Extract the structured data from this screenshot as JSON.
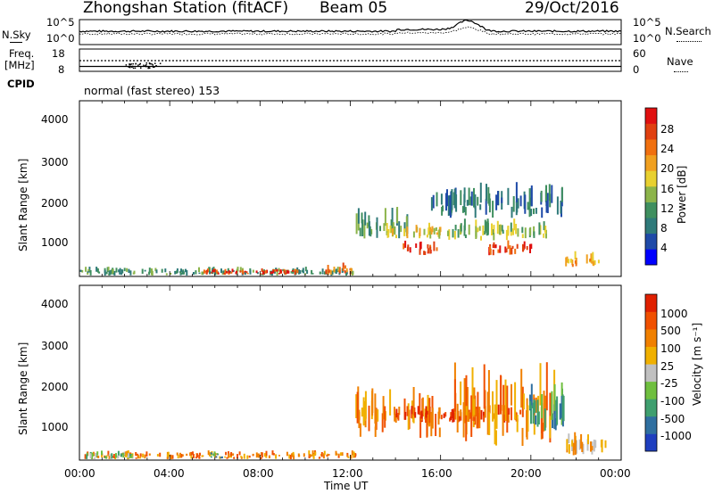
{
  "header": {
    "title": "Zhongshan Station (fitACF)",
    "beam": "Beam 05",
    "date": "29/Oct/2016"
  },
  "strip_noise": {
    "left_label": "N.Sky",
    "right_label": "N.Search",
    "left_ticks": [
      "10^5",
      "10^0"
    ],
    "right_ticks": [
      "10^5",
      "10^0"
    ]
  },
  "strip_freq": {
    "left_label_1": "Freq.",
    "left_label_2": "[MHz]",
    "left_ticks": [
      "18",
      "8"
    ],
    "right_label": "Nave",
    "right_ticks": [
      "60",
      "0"
    ]
  },
  "cpid": {
    "label": "CPID",
    "text": "normal (fast stereo) 153"
  },
  "x_axis": {
    "ticks": [
      "00:00",
      "04:00",
      "08:00",
      "12:00",
      "16:00",
      "20:00",
      "00:00"
    ],
    "label": "Time UT"
  },
  "power_panel": {
    "ylabel": "Slant Range [km]",
    "yticks": [
      "4000",
      "3000",
      "2000",
      "1000"
    ],
    "colorbar_label": "Power [dB]",
    "colorbar_ticks": [
      "28",
      "24",
      "20",
      "16",
      "12",
      "8",
      "4"
    ],
    "colors": [
      "#0000ff",
      "#1f4aa8",
      "#2f7a7a",
      "#3f8f5f",
      "#8cb44a",
      "#e8d030",
      "#f0a020",
      "#f07010",
      "#e04010",
      "#e01010"
    ]
  },
  "velocity_panel": {
    "ylabel": "Slant Range [km]",
    "yticks": [
      "4000",
      "3000",
      "2000",
      "1000"
    ],
    "colorbar_label": "Velocity [m s⁻¹]",
    "colorbar_ticks": [
      "1000",
      "500",
      "100",
      "25",
      "-25",
      "-100",
      "-500",
      "-1000"
    ],
    "colors": [
      "#1f3fbf",
      "#2f6fa0",
      "#3f9f6f",
      "#6fbf3f",
      "#c0c0c0",
      "#f0b000",
      "#f08000",
      "#f05000",
      "#e02000"
    ]
  },
  "chart_data": {
    "type": "heatmap",
    "x_range_hours": [
      0,
      24
    ],
    "y_range_km": [
      180,
      4500
    ],
    "power_blobs": [
      {
        "t0": 0.0,
        "t1": 12.2,
        "r0": 200,
        "r1": 420,
        "level": 3
      },
      {
        "t0": 5.4,
        "t1": 9.8,
        "r0": 220,
        "r1": 380,
        "level": 8
      },
      {
        "t0": 10.8,
        "t1": 12.2,
        "r0": 220,
        "r1": 520,
        "level": 7
      },
      {
        "t0": 12.2,
        "t1": 14.5,
        "r0": 1100,
        "r1": 1950,
        "level": 3
      },
      {
        "t0": 13.5,
        "t1": 16.0,
        "r0": 1100,
        "r1": 1500,
        "level": 5
      },
      {
        "t0": 14.3,
        "t1": 15.8,
        "r0": 700,
        "r1": 1100,
        "level": 8
      },
      {
        "t0": 16.2,
        "t1": 20.8,
        "r0": 1050,
        "r1": 1600,
        "level": 4
      },
      {
        "t0": 18.0,
        "t1": 20.0,
        "r0": 700,
        "r1": 1100,
        "level": 8
      },
      {
        "t0": 15.5,
        "t1": 21.5,
        "r0": 1600,
        "r1": 2500,
        "level": 2
      },
      {
        "t0": 21.5,
        "t1": 23.0,
        "r0": 400,
        "r1": 800,
        "level": 6
      }
    ],
    "velocity_blobs": [
      {
        "t0": 0.0,
        "t1": 12.2,
        "r0": 200,
        "r1": 420,
        "level": 6
      },
      {
        "t0": 0.0,
        "t1": 2.5,
        "r0": 200,
        "r1": 420,
        "level": 3
      },
      {
        "t0": 5.8,
        "t1": 6.6,
        "r0": 220,
        "r1": 420,
        "level": 2
      },
      {
        "t0": 12.2,
        "t1": 16.0,
        "r0": 700,
        "r1": 2000,
        "level": 6
      },
      {
        "t0": 14.0,
        "t1": 19.5,
        "r0": 1100,
        "r1": 1600,
        "level": 7
      },
      {
        "t0": 16.5,
        "t1": 21.0,
        "r0": 500,
        "r1": 2600,
        "level": 6
      },
      {
        "t0": 19.5,
        "t1": 21.5,
        "r0": 900,
        "r1": 2100,
        "level": 2
      },
      {
        "t0": 21.5,
        "t1": 23.5,
        "r0": 300,
        "r1": 900,
        "level": 5
      }
    ]
  }
}
